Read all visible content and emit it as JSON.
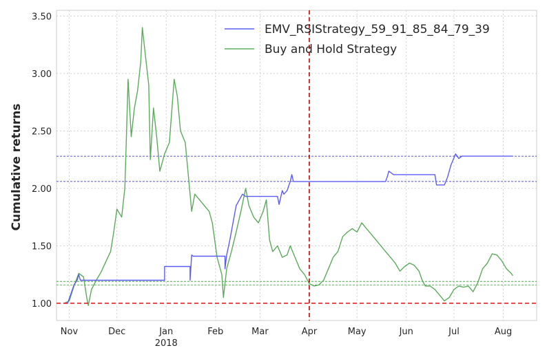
{
  "chart_data": {
    "type": "line",
    "title": "",
    "xlabel": "",
    "ylabel": "Cumulative returns",
    "x_range": [
      "2017-10-24",
      "2018-08-22"
    ],
    "ylim": [
      0.85,
      3.55
    ],
    "grid": true,
    "legend_position": "top-right",
    "y_ticks": [
      1.0,
      1.5,
      2.0,
      2.5,
      3.0,
      3.5
    ],
    "y_tick_labels": [
      "1.00",
      "1.50",
      "2.00",
      "2.50",
      "3.00",
      "3.50"
    ],
    "x_ticks": [
      {
        "date": "2017-11-01",
        "label": "Nov"
      },
      {
        "date": "2017-12-01",
        "label": "Dec"
      },
      {
        "date": "2018-01-01",
        "label": "Jan",
        "sublabel": "2018"
      },
      {
        "date": "2018-02-01",
        "label": "Feb"
      },
      {
        "date": "2018-03-01",
        "label": "Mar"
      },
      {
        "date": "2018-04-01",
        "label": "Apr"
      },
      {
        "date": "2018-05-01",
        "label": "May"
      },
      {
        "date": "2018-06-01",
        "label": "Jun"
      },
      {
        "date": "2018-07-01",
        "label": "Jul"
      },
      {
        "date": "2018-08-01",
        "label": "Aug"
      }
    ],
    "series": [
      {
        "name": "EMV_RSIStrategy_59_91_85_84_79_39",
        "color": "#5b5bf0",
        "points": [
          [
            "2017-10-29",
            1.0
          ],
          [
            "2017-10-31",
            1.0
          ],
          [
            "2017-11-02",
            1.08
          ],
          [
            "2017-11-04",
            1.16
          ],
          [
            "2017-11-06",
            1.2
          ],
          [
            "2017-11-07",
            1.25
          ],
          [
            "2017-11-08",
            1.2
          ],
          [
            "2017-11-10",
            1.2
          ],
          [
            "2017-12-31",
            1.2
          ],
          [
            "2017-12-31",
            1.32
          ],
          [
            "2018-01-16",
            1.32
          ],
          [
            "2018-01-16",
            1.2
          ],
          [
            "2018-01-17",
            1.42
          ],
          [
            "2018-01-18",
            1.41
          ],
          [
            "2018-02-07",
            1.41
          ],
          [
            "2018-02-07",
            1.3
          ],
          [
            "2018-02-08",
            1.42
          ],
          [
            "2018-02-10",
            1.55
          ],
          [
            "2018-02-12",
            1.7
          ],
          [
            "2018-02-14",
            1.85
          ],
          [
            "2018-02-16",
            1.9
          ],
          [
            "2018-02-18",
            1.95
          ],
          [
            "2018-02-20",
            1.93
          ],
          [
            "2018-03-12",
            1.93
          ],
          [
            "2018-03-13",
            1.86
          ],
          [
            "2018-03-15",
            1.98
          ],
          [
            "2018-03-16",
            1.95
          ],
          [
            "2018-03-18",
            1.98
          ],
          [
            "2018-03-20",
            2.06
          ],
          [
            "2018-03-21",
            2.12
          ],
          [
            "2018-03-22",
            2.06
          ],
          [
            "2018-05-19",
            2.06
          ],
          [
            "2018-05-20",
            2.1
          ],
          [
            "2018-05-21",
            2.15
          ],
          [
            "2018-05-24",
            2.12
          ],
          [
            "2018-06-19",
            2.12
          ],
          [
            "2018-06-20",
            2.03
          ],
          [
            "2018-06-25",
            2.03
          ],
          [
            "2018-06-27",
            2.1
          ],
          [
            "2018-06-29",
            2.2
          ],
          [
            "2018-07-02",
            2.3
          ],
          [
            "2018-07-04",
            2.26
          ],
          [
            "2018-07-06",
            2.28
          ],
          [
            "2018-08-07",
            2.28
          ]
        ]
      },
      {
        "name": "Buy and Hold Strategy",
        "color": "#5aab5a",
        "points": [
          [
            "2017-10-29",
            1.0
          ],
          [
            "2017-11-01",
            1.02
          ],
          [
            "2017-11-04",
            1.15
          ],
          [
            "2017-11-07",
            1.26
          ],
          [
            "2017-11-10",
            1.23
          ],
          [
            "2017-11-12",
            1.05
          ],
          [
            "2017-11-13",
            0.98
          ],
          [
            "2017-11-15",
            1.12
          ],
          [
            "2017-11-18",
            1.2
          ],
          [
            "2017-11-21",
            1.27
          ],
          [
            "2017-11-24",
            1.36
          ],
          [
            "2017-11-27",
            1.45
          ],
          [
            "2017-11-29",
            1.62
          ],
          [
            "2017-12-01",
            1.82
          ],
          [
            "2017-12-04",
            1.75
          ],
          [
            "2017-12-06",
            2.0
          ],
          [
            "2017-12-07",
            2.45
          ],
          [
            "2017-12-08",
            2.95
          ],
          [
            "2017-12-10",
            2.45
          ],
          [
            "2017-12-12",
            2.7
          ],
          [
            "2017-12-14",
            2.85
          ],
          [
            "2017-12-16",
            3.1
          ],
          [
            "2017-12-17",
            3.4
          ],
          [
            "2017-12-19",
            3.15
          ],
          [
            "2017-12-21",
            2.9
          ],
          [
            "2017-12-22",
            2.25
          ],
          [
            "2017-12-24",
            2.7
          ],
          [
            "2017-12-26",
            2.45
          ],
          [
            "2017-12-28",
            2.15
          ],
          [
            "2017-12-31",
            2.3
          ],
          [
            "2018-01-03",
            2.4
          ],
          [
            "2018-01-06",
            2.95
          ],
          [
            "2018-01-08",
            2.8
          ],
          [
            "2018-01-10",
            2.5
          ],
          [
            "2018-01-13",
            2.4
          ],
          [
            "2018-01-16",
            1.95
          ],
          [
            "2018-01-17",
            1.8
          ],
          [
            "2018-01-19",
            1.95
          ],
          [
            "2018-01-22",
            1.9
          ],
          [
            "2018-01-25",
            1.85
          ],
          [
            "2018-01-28",
            1.8
          ],
          [
            "2018-01-30",
            1.7
          ],
          [
            "2018-02-02",
            1.4
          ],
          [
            "2018-02-05",
            1.25
          ],
          [
            "2018-02-06",
            1.05
          ],
          [
            "2018-02-08",
            1.3
          ],
          [
            "2018-02-11",
            1.45
          ],
          [
            "2018-02-14",
            1.62
          ],
          [
            "2018-02-17",
            1.8
          ],
          [
            "2018-02-20",
            2.0
          ],
          [
            "2018-02-22",
            1.85
          ],
          [
            "2018-02-25",
            1.75
          ],
          [
            "2018-02-28",
            1.7
          ],
          [
            "2018-03-03",
            1.8
          ],
          [
            "2018-03-05",
            1.9
          ],
          [
            "2018-03-07",
            1.55
          ],
          [
            "2018-03-09",
            1.45
          ],
          [
            "2018-03-12",
            1.5
          ],
          [
            "2018-03-15",
            1.4
          ],
          [
            "2018-03-18",
            1.42
          ],
          [
            "2018-03-20",
            1.5
          ],
          [
            "2018-03-23",
            1.4
          ],
          [
            "2018-03-26",
            1.3
          ],
          [
            "2018-03-29",
            1.25
          ],
          [
            "2018-04-01",
            1.17
          ],
          [
            "2018-04-04",
            1.15
          ],
          [
            "2018-04-07",
            1.16
          ],
          [
            "2018-04-10",
            1.2
          ],
          [
            "2018-04-13",
            1.3
          ],
          [
            "2018-04-16",
            1.4
          ],
          [
            "2018-04-19",
            1.45
          ],
          [
            "2018-04-22",
            1.58
          ],
          [
            "2018-04-25",
            1.62
          ],
          [
            "2018-04-28",
            1.65
          ],
          [
            "2018-05-01",
            1.62
          ],
          [
            "2018-05-04",
            1.7
          ],
          [
            "2018-05-07",
            1.65
          ],
          [
            "2018-05-10",
            1.6
          ],
          [
            "2018-05-13",
            1.55
          ],
          [
            "2018-05-16",
            1.5
          ],
          [
            "2018-05-19",
            1.45
          ],
          [
            "2018-05-22",
            1.4
          ],
          [
            "2018-05-25",
            1.35
          ],
          [
            "2018-05-28",
            1.28
          ],
          [
            "2018-05-31",
            1.32
          ],
          [
            "2018-06-03",
            1.35
          ],
          [
            "2018-06-06",
            1.33
          ],
          [
            "2018-06-09",
            1.28
          ],
          [
            "2018-06-11",
            1.2
          ],
          [
            "2018-06-13",
            1.15
          ],
          [
            "2018-06-16",
            1.15
          ],
          [
            "2018-06-19",
            1.12
          ],
          [
            "2018-06-22",
            1.07
          ],
          [
            "2018-06-25",
            1.02
          ],
          [
            "2018-06-28",
            1.05
          ],
          [
            "2018-07-01",
            1.12
          ],
          [
            "2018-07-04",
            1.15
          ],
          [
            "2018-07-07",
            1.14
          ],
          [
            "2018-07-10",
            1.15
          ],
          [
            "2018-07-13",
            1.1
          ],
          [
            "2018-07-16",
            1.18
          ],
          [
            "2018-07-19",
            1.3
          ],
          [
            "2018-07-22",
            1.35
          ],
          [
            "2018-07-25",
            1.43
          ],
          [
            "2018-07-28",
            1.42
          ],
          [
            "2018-07-31",
            1.37
          ],
          [
            "2018-08-03",
            1.3
          ],
          [
            "2018-08-06",
            1.26
          ],
          [
            "2018-08-07",
            1.24
          ]
        ]
      }
    ],
    "reference_lines": [
      {
        "orientation": "horizontal",
        "y": 1.0,
        "color": "#e02020",
        "style": "dashed"
      },
      {
        "orientation": "vertical",
        "x": "2018-04-01",
        "color": "#cc0000",
        "style": "dashed"
      },
      {
        "orientation": "horizontal",
        "y": 2.28,
        "color": "#1a1acc",
        "style": "dashed"
      },
      {
        "orientation": "horizontal",
        "y": 2.06,
        "color": "#1a1acc",
        "style": "dashed"
      },
      {
        "orientation": "horizontal",
        "y": 1.19,
        "color": "#2a9a2a",
        "style": "dashed"
      },
      {
        "orientation": "horizontal",
        "y": 1.16,
        "color": "#2a9a2a",
        "style": "dashed"
      }
    ]
  }
}
